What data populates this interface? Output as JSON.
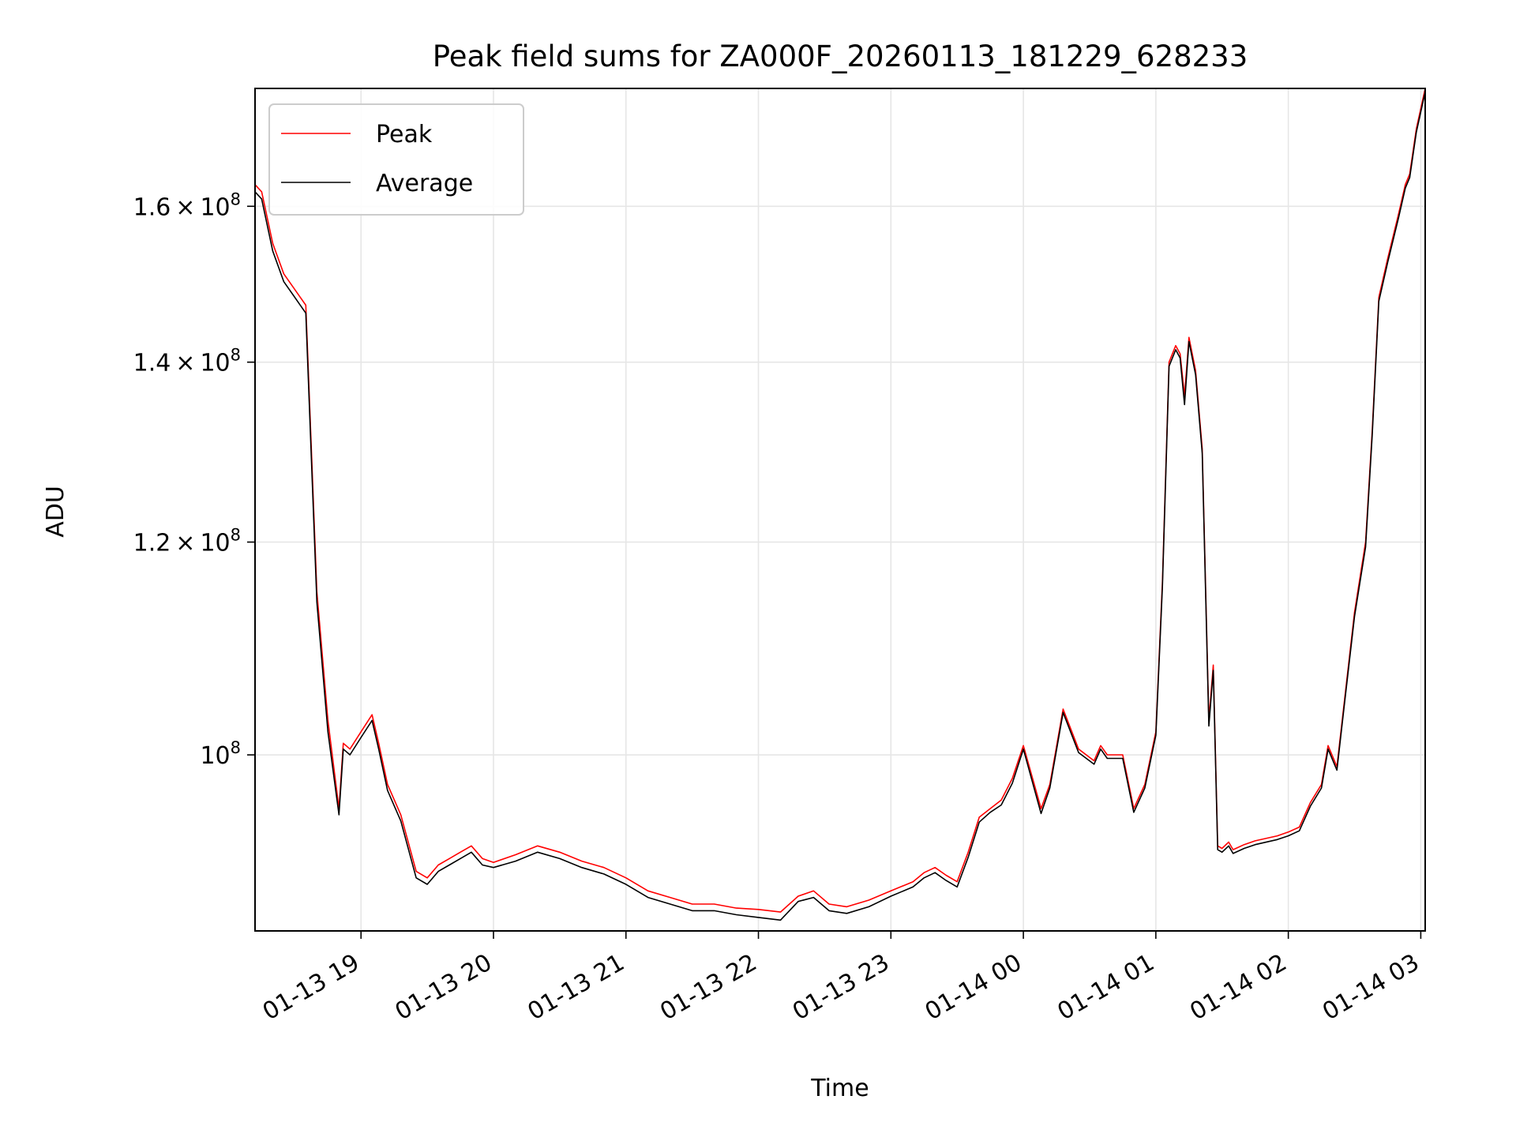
{
  "chart_data": {
    "type": "line",
    "title": "Peak field sums for ZA000F_20260113_181229_628233",
    "xlabel": "Time",
    "ylabel": "ADU",
    "x_unit": "datetime",
    "xlim": [
      "2026-01-13 18:12",
      "2026-01-14 03:02"
    ],
    "ylim": [
      86000000,
      177000000
    ],
    "yscale": "log",
    "grid": true,
    "legend_position": "upper-left",
    "x_ticks": [
      {
        "t": "2026-01-13 19:00",
        "label": "01-13 19"
      },
      {
        "t": "2026-01-13 20:00",
        "label": "01-13 20"
      },
      {
        "t": "2026-01-13 21:00",
        "label": "01-13 21"
      },
      {
        "t": "2026-01-13 22:00",
        "label": "01-13 22"
      },
      {
        "t": "2026-01-13 23:00",
        "label": "01-13 23"
      },
      {
        "t": "2026-01-14 00:00",
        "label": "01-14 00"
      },
      {
        "t": "2026-01-14 01:00",
        "label": "01-14 01"
      },
      {
        "t": "2026-01-14 02:00",
        "label": "01-14 02"
      },
      {
        "t": "2026-01-14 03:00",
        "label": "01-14 03"
      }
    ],
    "y_ticks": [
      {
        "value": 100000000,
        "mantissa": "",
        "base": "10",
        "exp": "8"
      },
      {
        "value": 120000000,
        "mantissa": "1.2",
        "base": "10",
        "exp": "8"
      },
      {
        "value": 140000000,
        "mantissa": "1.4",
        "base": "10",
        "exp": "8"
      },
      {
        "value": 160000000,
        "mantissa": "1.6",
        "base": "10",
        "exp": "8"
      }
    ],
    "series": [
      {
        "name": "Peak",
        "color": "#ff0000",
        "x": [
          "2026-01-13 18:12",
          "2026-01-13 18:15",
          "2026-01-13 18:20",
          "2026-01-13 18:25",
          "2026-01-13 18:30",
          "2026-01-13 18:35",
          "2026-01-13 18:40",
          "2026-01-13 18:45",
          "2026-01-13 18:50",
          "2026-01-13 18:52",
          "2026-01-13 18:55",
          "2026-01-13 19:00",
          "2026-01-13 19:05",
          "2026-01-13 19:08",
          "2026-01-13 19:12",
          "2026-01-13 19:18",
          "2026-01-13 19:25",
          "2026-01-13 19:30",
          "2026-01-13 19:35",
          "2026-01-13 19:40",
          "2026-01-13 19:45",
          "2026-01-13 19:50",
          "2026-01-13 19:55",
          "2026-01-13 20:00",
          "2026-01-13 20:10",
          "2026-01-13 20:20",
          "2026-01-13 20:30",
          "2026-01-13 20:40",
          "2026-01-13 20:50",
          "2026-01-13 21:00",
          "2026-01-13 21:10",
          "2026-01-13 21:20",
          "2026-01-13 21:30",
          "2026-01-13 21:40",
          "2026-01-13 21:50",
          "2026-01-13 22:00",
          "2026-01-13 22:10",
          "2026-01-13 22:18",
          "2026-01-13 22:25",
          "2026-01-13 22:32",
          "2026-01-13 22:40",
          "2026-01-13 22:50",
          "2026-01-13 23:00",
          "2026-01-13 23:10",
          "2026-01-13 23:15",
          "2026-01-13 23:20",
          "2026-01-13 23:25",
          "2026-01-13 23:30",
          "2026-01-13 23:35",
          "2026-01-13 23:40",
          "2026-01-13 23:45",
          "2026-01-13 23:50",
          "2026-01-13 23:55",
          "2026-01-14 00:00",
          "2026-01-14 00:08",
          "2026-01-14 00:12",
          "2026-01-14 00:18",
          "2026-01-14 00:25",
          "2026-01-14 00:32",
          "2026-01-14 00:35",
          "2026-01-14 00:38",
          "2026-01-14 00:45",
          "2026-01-14 00:50",
          "2026-01-14 00:55",
          "2026-01-14 01:00",
          "2026-01-14 01:03",
          "2026-01-14 01:06",
          "2026-01-14 01:09",
          "2026-01-14 01:11",
          "2026-01-14 01:13",
          "2026-01-14 01:15",
          "2026-01-14 01:18",
          "2026-01-14 01:21",
          "2026-01-14 01:24",
          "2026-01-14 01:26",
          "2026-01-14 01:28",
          "2026-01-14 01:30",
          "2026-01-14 01:33",
          "2026-01-14 01:35",
          "2026-01-14 01:40",
          "2026-01-14 01:45",
          "2026-01-14 01:55",
          "2026-01-14 02:00",
          "2026-01-14 02:05",
          "2026-01-14 02:10",
          "2026-01-14 02:15",
          "2026-01-14 02:18",
          "2026-01-14 02:22",
          "2026-01-14 02:25",
          "2026-01-14 02:30",
          "2026-01-14 02:35",
          "2026-01-14 02:38",
          "2026-01-14 02:41",
          "2026-01-14 02:45",
          "2026-01-14 02:50",
          "2026-01-14 02:53",
          "2026-01-14 02:55",
          "2026-01-14 02:58",
          "2026-01-14 03:02"
        ],
        "y": [
          163000000,
          162000000,
          155000000,
          151000000,
          149000000,
          147000000,
          115000000,
          103000000,
          95500000,
          101000000,
          100500000,
          102000000,
          103500000,
          101000000,
          97500000,
          95000000,
          90500000,
          90000000,
          91000000,
          91500000,
          92000000,
          92500000,
          91500000,
          91200000,
          91800000,
          92500000,
          92000000,
          91300000,
          90800000,
          90000000,
          89000000,
          88500000,
          88000000,
          88000000,
          87700000,
          87600000,
          87400000,
          88600000,
          89000000,
          88000000,
          87800000,
          88300000,
          89000000,
          89700000,
          90400000,
          90800000,
          90200000,
          89700000,
          92000000,
          94800000,
          95500000,
          96200000,
          98000000,
          100800000,
          95500000,
          97500000,
          104000000,
          100500000,
          99500000,
          100800000,
          100000000,
          100000000,
          95500000,
          97500000,
          102000000,
          116000000,
          140000000,
          142000000,
          141000000,
          136000000,
          143000000,
          139000000,
          130000000,
          103000000,
          108000000,
          92500000,
          92300000,
          92800000,
          92200000,
          92600000,
          92900000,
          93300000,
          93600000,
          94000000,
          96000000,
          97500000,
          100800000,
          99000000,
          104000000,
          113000000,
          120000000,
          132000000,
          148000000,
          153000000,
          159000000,
          163000000,
          164500000,
          171000000,
          177000000
        ]
      },
      {
        "name": "Average",
        "color": "#000000",
        "x": [
          "2026-01-13 18:12",
          "2026-01-13 18:15",
          "2026-01-13 18:20",
          "2026-01-13 18:25",
          "2026-01-13 18:30",
          "2026-01-13 18:35",
          "2026-01-13 18:40",
          "2026-01-13 18:45",
          "2026-01-13 18:50",
          "2026-01-13 18:52",
          "2026-01-13 18:55",
          "2026-01-13 19:00",
          "2026-01-13 19:05",
          "2026-01-13 19:08",
          "2026-01-13 19:12",
          "2026-01-13 19:18",
          "2026-01-13 19:25",
          "2026-01-13 19:30",
          "2026-01-13 19:35",
          "2026-01-13 19:40",
          "2026-01-13 19:45",
          "2026-01-13 19:50",
          "2026-01-13 19:55",
          "2026-01-13 20:00",
          "2026-01-13 20:10",
          "2026-01-13 20:20",
          "2026-01-13 20:30",
          "2026-01-13 20:40",
          "2026-01-13 20:50",
          "2026-01-13 21:00",
          "2026-01-13 21:10",
          "2026-01-13 21:20",
          "2026-01-13 21:30",
          "2026-01-13 21:40",
          "2026-01-13 21:50",
          "2026-01-13 22:00",
          "2026-01-13 22:10",
          "2026-01-13 22:18",
          "2026-01-13 22:25",
          "2026-01-13 22:32",
          "2026-01-13 22:40",
          "2026-01-13 22:50",
          "2026-01-13 23:00",
          "2026-01-13 23:10",
          "2026-01-13 23:15",
          "2026-01-13 23:20",
          "2026-01-13 23:25",
          "2026-01-13 23:30",
          "2026-01-13 23:35",
          "2026-01-13 23:40",
          "2026-01-13 23:45",
          "2026-01-13 23:50",
          "2026-01-13 23:55",
          "2026-01-14 00:00",
          "2026-01-14 00:08",
          "2026-01-14 00:12",
          "2026-01-14 00:18",
          "2026-01-14 00:25",
          "2026-01-14 00:32",
          "2026-01-14 00:35",
          "2026-01-14 00:38",
          "2026-01-14 00:45",
          "2026-01-14 00:50",
          "2026-01-14 00:55",
          "2026-01-14 01:00",
          "2026-01-14 01:03",
          "2026-01-14 01:06",
          "2026-01-14 01:09",
          "2026-01-14 01:11",
          "2026-01-14 01:13",
          "2026-01-14 01:15",
          "2026-01-14 01:18",
          "2026-01-14 01:21",
          "2026-01-14 01:24",
          "2026-01-14 01:26",
          "2026-01-14 01:28",
          "2026-01-14 01:30",
          "2026-01-14 01:33",
          "2026-01-14 01:35",
          "2026-01-14 01:40",
          "2026-01-14 01:45",
          "2026-01-14 01:55",
          "2026-01-14 02:00",
          "2026-01-14 02:05",
          "2026-01-14 02:10",
          "2026-01-14 02:15",
          "2026-01-14 02:18",
          "2026-01-14 02:22",
          "2026-01-14 02:25",
          "2026-01-14 02:30",
          "2026-01-14 02:35",
          "2026-01-14 02:38",
          "2026-01-14 02:41",
          "2026-01-14 02:45",
          "2026-01-14 02:50",
          "2026-01-14 02:53",
          "2026-01-14 02:55",
          "2026-01-14 02:58",
          "2026-01-14 03:02"
        ],
        "y": [
          162000000,
          161000000,
          154000000,
          150000000,
          148000000,
          146000000,
          114000000,
          102000000,
          95000000,
          100500000,
          100000000,
          101500000,
          103000000,
          100500000,
          97000000,
          94500000,
          90000000,
          89500000,
          90500000,
          91000000,
          91500000,
          92000000,
          91000000,
          90800000,
          91300000,
          92000000,
          91500000,
          90800000,
          90300000,
          89500000,
          88500000,
          88000000,
          87500000,
          87500000,
          87200000,
          87000000,
          86800000,
          88200000,
          88500000,
          87500000,
          87300000,
          87800000,
          88600000,
          89300000,
          90000000,
          90400000,
          89800000,
          89300000,
          91600000,
          94400000,
          95200000,
          95800000,
          97600000,
          100500000,
          95100000,
          97200000,
          103700000,
          100200000,
          99200000,
          100500000,
          99700000,
          99700000,
          95200000,
          97200000,
          101700000,
          115500000,
          139500000,
          141500000,
          140500000,
          135000000,
          142500000,
          138500000,
          129500000,
          102500000,
          107500000,
          92200000,
          92000000,
          92500000,
          91900000,
          92300000,
          92600000,
          93000000,
          93300000,
          93700000,
          95700000,
          97200000,
          100500000,
          98700000,
          103700000,
          112600000,
          119500000,
          131500000,
          147500000,
          152500000,
          158500000,
          162500000,
          164000000,
          170500000,
          176500000
        ]
      }
    ]
  }
}
